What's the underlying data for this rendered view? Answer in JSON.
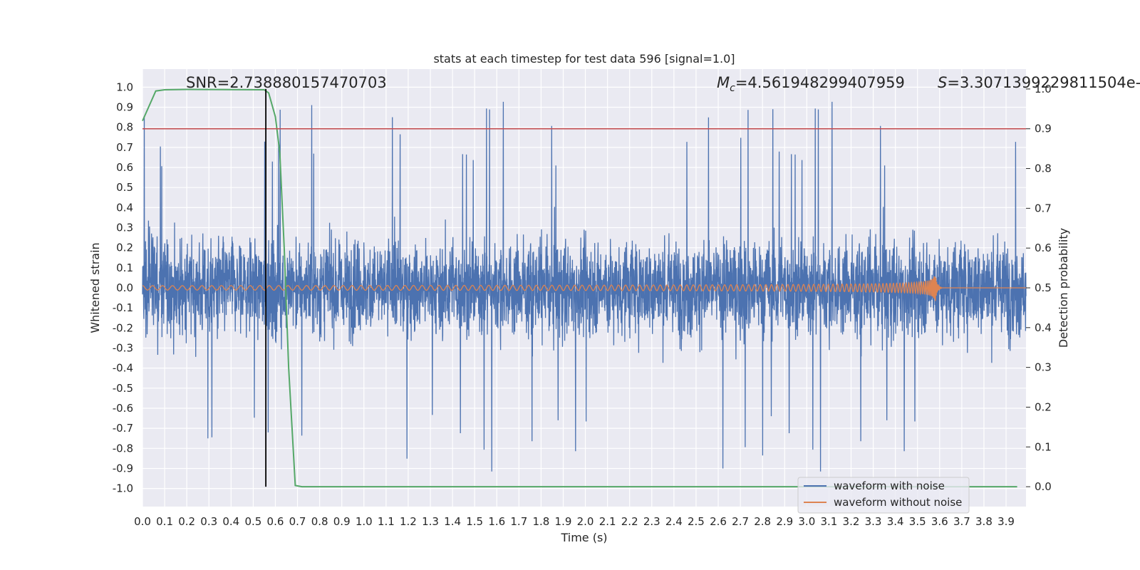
{
  "chart_data": {
    "type": "line",
    "title": "stats at each timestep for test data 596 [signal=1.0]",
    "xlabel": "Time (s)",
    "ylabel": "Whitened strain",
    "ylabel_right": "Detection probability",
    "xlim": [
      0.0,
      3.99
    ],
    "ylim": [
      -1.09,
      1.09
    ],
    "ylim_right": [
      -0.05,
      1.05
    ],
    "x_ticks": [
      "0.0",
      "0.1",
      "0.2",
      "0.3",
      "0.4",
      "0.5",
      "0.6",
      "0.7",
      "0.8",
      "0.9",
      "1.0",
      "1.1",
      "1.2",
      "1.3",
      "1.4",
      "1.5",
      "1.6",
      "1.7",
      "1.8",
      "1.9",
      "2.0",
      "2.1",
      "2.2",
      "2.3",
      "2.4",
      "2.5",
      "2.6",
      "2.7",
      "2.8",
      "2.9",
      "3.0",
      "3.1",
      "3.2",
      "3.3",
      "3.4",
      "3.5",
      "3.6",
      "3.7",
      "3.8",
      "3.9"
    ],
    "y_ticks": [
      "1.0",
      "0.9",
      "0.8",
      "0.7",
      "0.6",
      "0.5",
      "0.4",
      "0.3",
      "0.2",
      "0.1",
      "0.0",
      "-0.1",
      "-0.2",
      "-0.3",
      "-0.4",
      "-0.5",
      "-0.6",
      "-0.7",
      "-0.8",
      "-0.9",
      "-1.0"
    ],
    "y_ticks_right": [
      "1.0",
      "0.9",
      "0.8",
      "0.7",
      "0.6",
      "0.5",
      "0.4",
      "0.3",
      "0.2",
      "0.1",
      "0.0"
    ],
    "annotations": {
      "snr": "SNR=2.738880157470703",
      "mc_symbol": "M",
      "mc_sub": "c",
      "mc_value": "=4.561948299407959",
      "s_symbol": "S",
      "s_value": "=3.3071399229811504e-"
    },
    "series": [
      {
        "name": "waveform with noise",
        "color": "#4c72b0",
        "axis": "left",
        "kind": "noise",
        "approx_envelope": [
          -1.0,
          1.0
        ]
      },
      {
        "name": "waveform without noise",
        "color": "#dd8452",
        "axis": "left",
        "kind": "chirp",
        "merger_time": 3.58,
        "peak_amplitude": 0.08
      },
      {
        "axis": "right",
        "color": "#55a868",
        "kind": "probability",
        "x": [
          0.0,
          0.06,
          0.1,
          0.2,
          0.55,
          0.57,
          0.6,
          0.62,
          0.64,
          0.66,
          0.69,
          0.72,
          3.95
        ],
        "y": [
          0.92,
          0.995,
          0.998,
          0.999,
          0.998,
          0.99,
          0.93,
          0.84,
          0.6,
          0.3,
          0.003,
          0.0,
          0.0
        ]
      }
    ],
    "threshold": {
      "value": 0.9,
      "axis": "right",
      "color": "#c44e52"
    },
    "marker_time": 0.557,
    "marker_color": "#000000",
    "grid": true,
    "legend_position": "bottom-right",
    "background": "#eaeaf2"
  }
}
